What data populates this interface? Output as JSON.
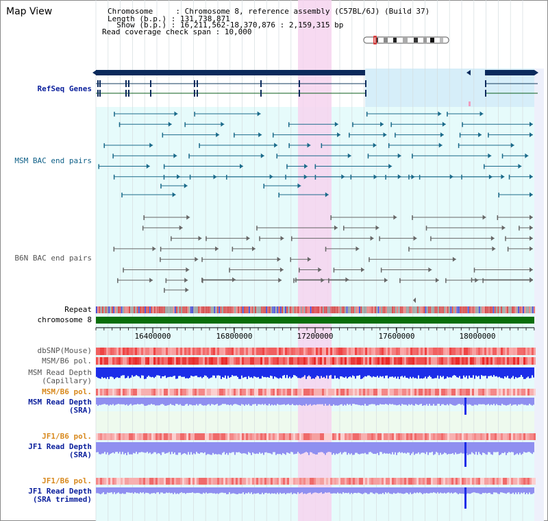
{
  "title": "Map View",
  "header": {
    "chromosome_label": "Chromosome     : Chromosome 8, reference assembly (C57BL/6J) (Build 37)",
    "length_label": "Length (b.p.) : 131,738,871",
    "show_label": "  Show (b.p.) : 16,211,562-18,370,876 : 2,159,315 bp",
    "read_coverage_label": "Read coverage check span : 10,000"
  },
  "tracks": {
    "refseq_genes": "RefSeq Genes",
    "msm_bac": "MSM BAC end pairs",
    "b6n_bac": "B6N BAC end pairs",
    "repeat": "Repeat",
    "chromosome": "chromosome 8",
    "dbsnp": "dbSNP(Mouse)",
    "msm_b6_pol_1": "MSM/B6 pol.",
    "msm_depth_cap_1": "MSM Read Depth",
    "msm_depth_cap_2": "(Capillary)",
    "msm_b6_pol_2": "MSM/B6 pol.",
    "msm_depth_sra_1": "MSM Read Depth",
    "msm_depth_sra_2": "(SRA)",
    "jf1_b6_pol_1": "JF1/B6 pol.",
    "jf1_depth_sra_1": "JF1 Read Depth",
    "jf1_depth_sra_2": "(SRA)",
    "jf1_b6_pol_2": "JF1/B6 pol.",
    "jf1_depth_trim_1": "JF1 Read Depth",
    "jf1_depth_trim_2": "(SRA trimmed)"
  },
  "ruler": {
    "ticks": [
      "16400000",
      "16800000",
      "17200000",
      "17600000",
      "18000000"
    ]
  },
  "colors": {
    "refseq": "#0b2a5c",
    "msm_bac": "#1a6a8a",
    "b6n_bac": "#666666",
    "chromosome": "#0a6e0a",
    "highlight": "#f6d3ef",
    "shade": "#e6fbfb",
    "gene_shade": "#d6eef9",
    "depth_blue": "#1c2de8",
    "depth_light": "#8f8ff0"
  }
}
